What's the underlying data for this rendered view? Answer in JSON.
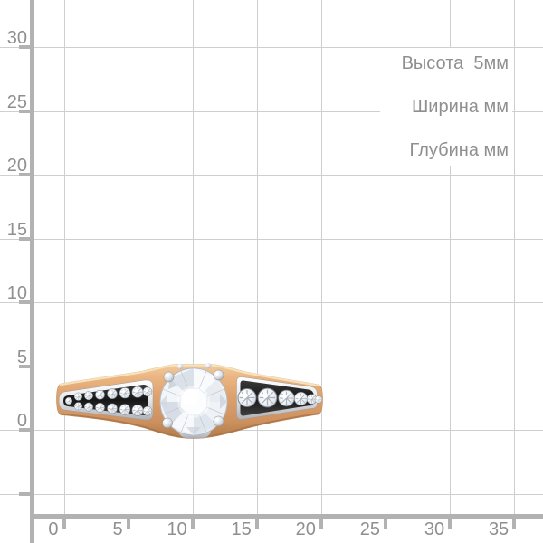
{
  "measurements": {
    "height": "Высота  5мм",
    "width": "Ширина мм",
    "depth": "Глубина мм"
  },
  "axes": {
    "x_ticks": [
      "0",
      "5",
      "10",
      "15",
      "20",
      "25",
      "30",
      "35"
    ],
    "y_ticks": [
      "30",
      "25",
      "20",
      "15",
      "10",
      "5",
      "0"
    ]
  },
  "colors": {
    "grid_line": "#cfcfcf",
    "axis": "#b2b2b2",
    "label_text": "#8f8f8f",
    "gold_top": "#f2cd9c",
    "gold_upper": "#eab583",
    "gold_mid": "#dca06c",
    "gold_low": "#cd9260",
    "gold_shadow": "#b8814f",
    "gold_reflect": "#c9945f",
    "gold_highlight": "#f8e4bd",
    "silver_light": "#ffffff",
    "silver_mid": "#e9eaec",
    "silver_deep": "#aeb1b5",
    "channel_dark": "#161616",
    "diamond_white": "#ffffff",
    "diamond_shade": "#d9dfe7"
  }
}
